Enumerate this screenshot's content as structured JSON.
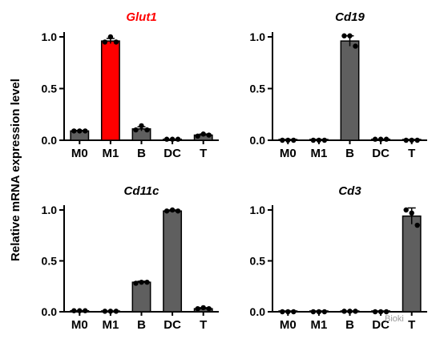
{
  "ylabel": "Relative mRNA expression level",
  "watermark": "Bioki",
  "chart_data": [
    {
      "type": "bar",
      "title": "Glut1",
      "title_color": "#ff0000",
      "highlight_category": "M1",
      "highlight_color": "#ff0000",
      "bar_color": "#5f5f5f",
      "categories": [
        "M0",
        "M1",
        "B",
        "DC",
        "T"
      ],
      "values": [
        0.09,
        0.96,
        0.11,
        0.01,
        0.05
      ],
      "errors": [
        0.005,
        0.025,
        0.02,
        0.003,
        0.01
      ],
      "points": [
        [
          0.09,
          0.09,
          0.09
        ],
        [
          0.95,
          1.0,
          0.95
        ],
        [
          0.1,
          0.14,
          0.1
        ],
        [
          0.01,
          0.01,
          0.01
        ],
        [
          0.04,
          0.06,
          0.05
        ]
      ],
      "ylim": [
        0,
        1.0
      ],
      "yticks": [
        "0.0",
        "0.5",
        "1.0"
      ],
      "grid": false
    },
    {
      "type": "bar",
      "title": "Cd19",
      "title_color": "#000000",
      "bar_color": "#5f5f5f",
      "categories": [
        "M0",
        "M1",
        "B",
        "DC",
        "T"
      ],
      "values": [
        0.0,
        0.0,
        0.96,
        0.01,
        0.0
      ],
      "errors": [
        0.0,
        0.0,
        0.05,
        0.003,
        0.0
      ],
      "points": [
        [
          0.0,
          0.0,
          0.0
        ],
        [
          0.0,
          0.0,
          0.0
        ],
        [
          1.01,
          1.01,
          0.91
        ],
        [
          0.01,
          0.01,
          0.01
        ],
        [
          0.0,
          0.0,
          0.0
        ]
      ],
      "ylim": [
        0,
        1.0
      ],
      "yticks": [
        "0.0",
        "0.5",
        "1.0"
      ],
      "grid": false
    },
    {
      "type": "bar",
      "title": "Cd11c",
      "title_color": "#000000",
      "bar_color": "#5f5f5f",
      "categories": [
        "M0",
        "M1",
        "B",
        "DC",
        "T"
      ],
      "values": [
        0.01,
        0.005,
        0.29,
        0.99,
        0.03
      ],
      "errors": [
        0.003,
        0.003,
        0.01,
        0.01,
        0.01
      ],
      "points": [
        [
          0.01,
          0.01,
          0.01
        ],
        [
          0.005,
          0.005,
          0.005
        ],
        [
          0.28,
          0.29,
          0.29
        ],
        [
          0.99,
          1.0,
          0.99
        ],
        [
          0.03,
          0.04,
          0.03
        ]
      ],
      "ylim": [
        0,
        1.0
      ],
      "yticks": [
        "0.0",
        "0.5",
        "1.0"
      ],
      "grid": false
    },
    {
      "type": "bar",
      "title": "Cd3",
      "title_color": "#000000",
      "bar_color": "#5f5f5f",
      "categories": [
        "M0",
        "M1",
        "B",
        "DC",
        "T"
      ],
      "values": [
        0.0,
        0.0,
        0.005,
        0.0,
        0.94
      ],
      "errors": [
        0.0,
        0.0,
        0.002,
        0.0,
        0.08
      ],
      "points": [
        [
          0.0,
          0.0,
          0.0
        ],
        [
          0.0,
          0.0,
          0.0
        ],
        [
          0.005,
          0.005,
          0.005
        ],
        [
          0.0,
          0.0,
          0.0
        ],
        [
          1.0,
          0.97,
          0.85
        ]
      ],
      "ylim": [
        0,
        1.0
      ],
      "yticks": [
        "0.0",
        "0.5",
        "1.0"
      ],
      "grid": false
    }
  ]
}
